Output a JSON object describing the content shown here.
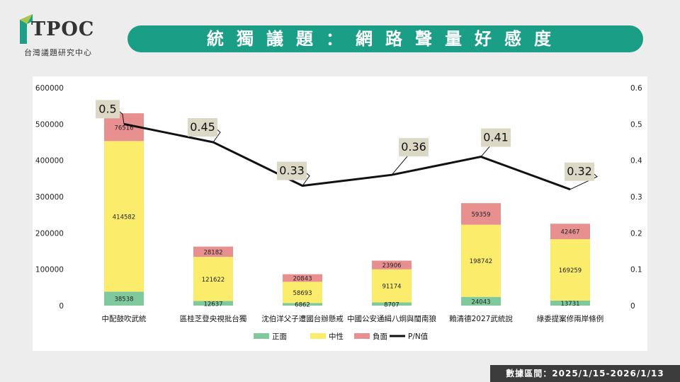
{
  "header": {
    "logo_text": "TPOC",
    "logo_subtitle": "台灣議題研究中心",
    "title": "統獨議題：網路聲量好感度"
  },
  "footer": {
    "date_range": "數據區間：2025/1/15-2026/1/13"
  },
  "colors": {
    "positive": "#7fc99c",
    "neutral": "#fbec6c",
    "negative": "#e88f8f",
    "line": "#111111",
    "accent": "#1f9e88"
  },
  "chart_data": {
    "type": "bar",
    "stacked": true,
    "categories": [
      "中配鼓吹武統",
      "區桂芝登央視批台獨",
      "沈伯洋父子遭國台辦懸戒",
      "中國公安通緝八炯與閩南狼",
      "賴清德2027武統說",
      "綠委提案修兩岸條例"
    ],
    "series": [
      {
        "name": "正面",
        "values": [
          38538,
          12637,
          6862,
          8707,
          24043,
          13731
        ]
      },
      {
        "name": "中性",
        "values": [
          414582,
          121622,
          58693,
          91174,
          198742,
          169259
        ]
      },
      {
        "name": "負面",
        "values": [
          76516,
          28182,
          20843,
          23906,
          59359,
          42467
        ]
      }
    ],
    "line": {
      "name": "P/N值",
      "values": [
        0.5,
        0.45,
        0.33,
        0.36,
        0.41,
        0.32
      ],
      "labels": [
        "0.5",
        "0.45",
        "0.33",
        "0.36",
        "0.41",
        "0.32"
      ]
    },
    "yleft": {
      "ylim": [
        0,
        600000
      ],
      "ticks": [
        "0",
        "100000",
        "200000",
        "300000",
        "400000",
        "500000",
        "600000"
      ]
    },
    "yright": {
      "ylim": [
        0,
        0.6
      ],
      "ticks": [
        "0",
        "0.1",
        "0.2",
        "0.3",
        "0.4",
        "0.5",
        "0.6"
      ]
    },
    "legend": "bottom",
    "grid": false
  }
}
